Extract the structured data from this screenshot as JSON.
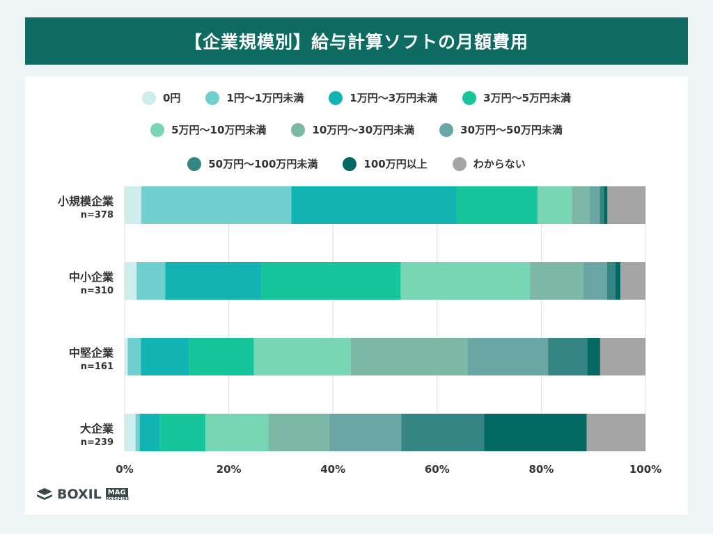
{
  "title": "【企業規模別】給与計算ソフトの月額費用",
  "logo": {
    "text": "BOXIL",
    "badge": "MAG",
    "sub": "MAGAZINE"
  },
  "chart_data": {
    "type": "bar",
    "orientation": "horizontal-stacked-100",
    "categories": [
      {
        "name": "小規模企業",
        "n": "n=378"
      },
      {
        "name": "中小企業",
        "n": "n=310"
      },
      {
        "name": "中堅企業",
        "n": "n=161"
      },
      {
        "name": "大企業",
        "n": "n=239"
      }
    ],
    "series": [
      {
        "name": "0円",
        "color": "#cdeeed",
        "values": [
          3.2,
          2.3,
          0.6,
          2.1
        ]
      },
      {
        "name": "1円〜1万円未満",
        "color": "#6fd0cf",
        "values": [
          28.8,
          5.5,
          2.5,
          0.8
        ]
      },
      {
        "name": "1万円〜3万円未満",
        "color": "#12b3b3",
        "values": [
          31.7,
          18.4,
          9.3,
          3.8
        ]
      },
      {
        "name": "3万円〜5万円未満",
        "color": "#16c69a",
        "values": [
          15.6,
          26.8,
          12.4,
          8.8
        ]
      },
      {
        "name": "5万円〜10万円未満",
        "color": "#78d6b4",
        "values": [
          6.6,
          24.8,
          18.6,
          12.1
        ]
      },
      {
        "name": "10万円〜30万円未満",
        "color": "#7cb8a5",
        "values": [
          3.4,
          10.3,
          22.4,
          11.7
        ]
      },
      {
        "name": "30万円〜50万円未満",
        "color": "#6aa6a3",
        "values": [
          1.9,
          4.5,
          15.5,
          13.8
        ]
      },
      {
        "name": "50万円〜100万円未満",
        "color": "#358584",
        "values": [
          0.8,
          1.6,
          7.5,
          15.9
        ]
      },
      {
        "name": "100万円以上",
        "color": "#046963",
        "values": [
          0.7,
          1.0,
          2.5,
          19.7
        ]
      },
      {
        "name": "わからない",
        "color": "#a5a5a5",
        "values": [
          7.3,
          4.8,
          8.7,
          11.3
        ]
      }
    ],
    "x_ticks": [
      "0%",
      "20%",
      "40%",
      "60%",
      "80%",
      "100%"
    ],
    "xlim": [
      0,
      100
    ],
    "grid": true,
    "legend_position": "top"
  }
}
